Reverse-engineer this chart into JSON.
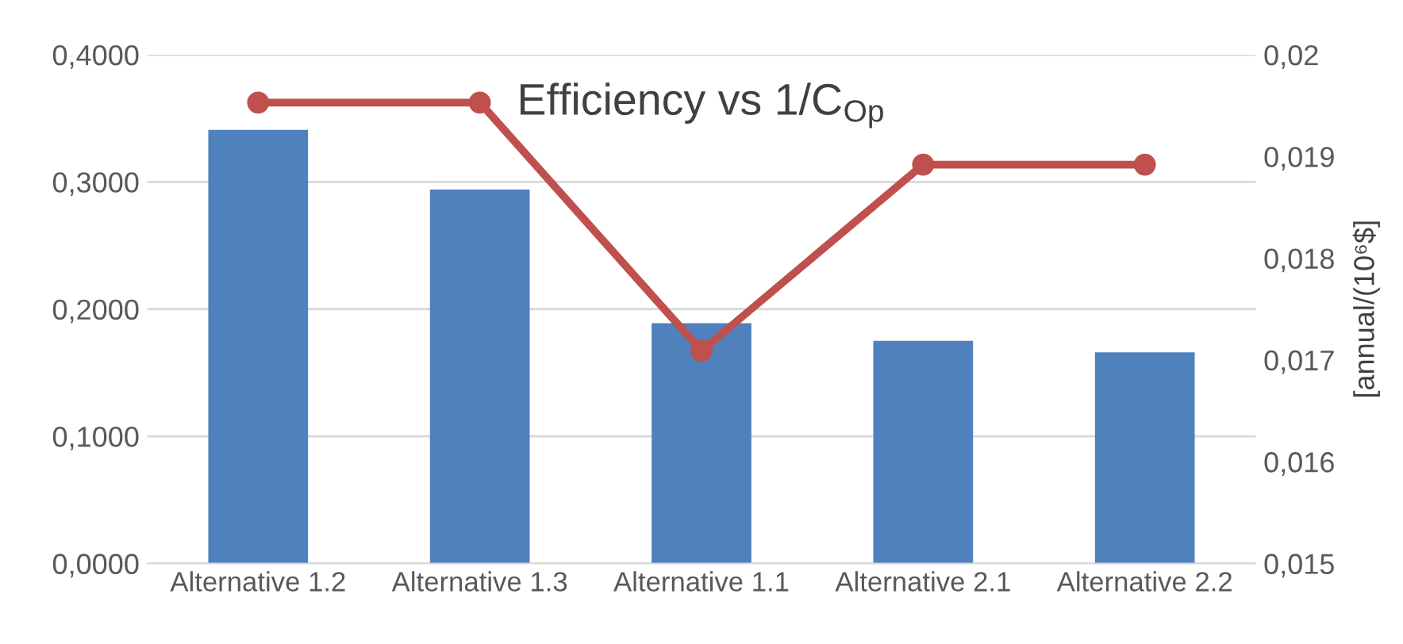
{
  "chart_data": {
    "type": "bar",
    "title": "Efficiency vs 1/C$_{Op}$",
    "y2label": "[annual/(10⁶$]",
    "categories": [
      "Alternative 1.2",
      "Alternative 1.3",
      "Alternative 1.1",
      "Alternative 2.1",
      "Alternative 2.2"
    ],
    "series": [
      {
        "color": "#4f81bd",
        "values": [
          0.341,
          0.294,
          0.189,
          0.175,
          0.166
        ]
      },
      {
        "type": "line",
        "axis": "y2",
        "color": "#c0504d",
        "marker": "circle",
        "values": [
          0.01953,
          0.01953,
          0.01709,
          0.01892,
          0.01892
        ]
      }
    ],
    "ylim": [
      0,
      0.4
    ],
    "yticks": [
      {
        "value": 0,
        "label": "0,0000"
      },
      {
        "value": 0.1,
        "label": "0,1000"
      },
      {
        "value": 0.2,
        "label": "0,2000"
      },
      {
        "value": 0.3,
        "label": "0,3000"
      },
      {
        "value": 0.4,
        "label": "0,4000"
      }
    ],
    "y2lim": [
      0.015,
      0.02
    ],
    "y2ticks": [
      {
        "value": 0.015,
        "label": "0,015"
      },
      {
        "value": 0.016,
        "label": "0,016"
      },
      {
        "value": 0.017,
        "label": "0,017"
      },
      {
        "value": 0.018,
        "label": "0,018"
      },
      {
        "value": 0.019,
        "label": "0,019"
      },
      {
        "value": 0.02,
        "label": "0,02"
      }
    ],
    "grid": "y"
  }
}
